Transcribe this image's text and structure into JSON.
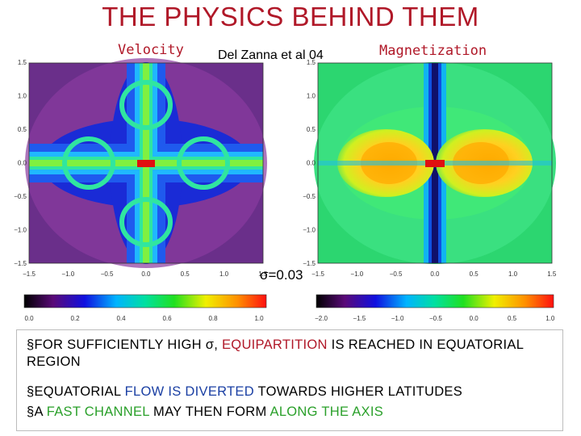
{
  "title": "THE PHYSICS BEHIND THEM",
  "labels": {
    "left": "Velocity",
    "right": "Magnetization",
    "citation": "Del Zanna et al 04",
    "sigma": "σ=0.03"
  },
  "left_panel": {
    "axis_ticks": [
      "1.5",
      "1.0",
      "0.5",
      "0.0",
      "−0.5",
      "−1.0",
      "−1.5"
    ],
    "x_ticks": [
      "−1.5",
      "−1.0",
      "−0.5",
      "0.0",
      "0.5",
      "1.0",
      "1.5"
    ],
    "colorbar_ticks": [
      "0.0",
      "0.2",
      "0.4",
      "0.6",
      "0.8",
      "1.0"
    ]
  },
  "right_panel": {
    "axis_ticks": [
      "1.5",
      "1.0",
      "0.5",
      "0.0",
      "−0.5",
      "−1.0",
      "−1.5"
    ],
    "x_ticks": [
      "−1.5",
      "−1.0",
      "−0.5",
      "0.0",
      "0.5",
      "1.0",
      "1.5"
    ],
    "colorbar_ticks": [
      "−2.0",
      "−1.5",
      "−1.0",
      "−0.5",
      "0.0",
      "0.5",
      "1.0"
    ]
  },
  "bullets": {
    "b1_p1": "§FOR SUFFICIENTLY HIGH ",
    "b1_sigma": "σ",
    "b1_p2": ", ",
    "b1_red": "EQUIPARTITION",
    "b1_p3": " IS REACHED IN EQUATORIAL REGION",
    "b2_p1": "§EQUATORIAL ",
    "b2_blue": "FLOW IS DIVERTED",
    "b2_p2": " TOWARDS HIGHER LATITUDES",
    "b3_p1": "§A ",
    "b3_green": "FAST CHANNEL",
    "b3_p2": " MAY THEN FORM ",
    "b3_green2": "ALONG THE AXIS"
  },
  "colors": {
    "title": "#b01828",
    "highlight_red": "#b01828",
    "highlight_blue": "#1a3fa3",
    "highlight_green": "#2aa02a"
  }
}
